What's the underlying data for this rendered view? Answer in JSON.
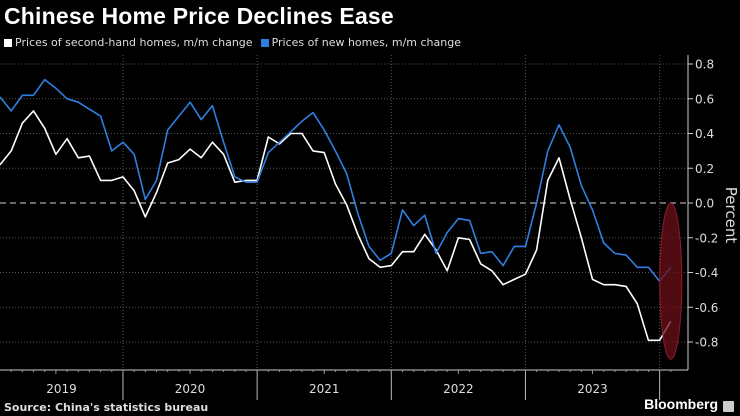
{
  "title": "Chinese Home Price Declines Ease",
  "source": "Source: China's statistics bureau",
  "brand": "Bloomberg",
  "chart_data": {
    "type": "line",
    "title": "Chinese Home Price Declines Ease",
    "ylabel": "Percent",
    "ylim": [
      -0.95,
      0.85
    ],
    "yticks": [
      0.8,
      0.6,
      0.4,
      0.2,
      0.0,
      -0.2,
      -0.4,
      -0.6,
      -0.8
    ],
    "ytick_labels": [
      "0.8",
      "0.6",
      "0.4",
      "0.2",
      "0.0",
      "-0.2",
      "-0.4",
      "-0.6",
      "-0.8"
    ],
    "xtick_labels": [
      "2019",
      "2020",
      "2021",
      "2022",
      "2023"
    ],
    "grid": true,
    "legend": "top-left",
    "highlight": "ellipse around latest month",
    "x": [
      "2019-01",
      "2019-02",
      "2019-03",
      "2019-04",
      "2019-05",
      "2019-06",
      "2019-07",
      "2019-08",
      "2019-09",
      "2019-10",
      "2019-11",
      "2019-12",
      "2020-01",
      "2020-02",
      "2020-03",
      "2020-04",
      "2020-05",
      "2020-06",
      "2020-07",
      "2020-08",
      "2020-09",
      "2020-10",
      "2020-11",
      "2020-12",
      "2021-01",
      "2021-02",
      "2021-03",
      "2021-04",
      "2021-05",
      "2021-06",
      "2021-07",
      "2021-08",
      "2021-09",
      "2021-10",
      "2021-11",
      "2021-12",
      "2022-01",
      "2022-02",
      "2022-03",
      "2022-04",
      "2022-05",
      "2022-06",
      "2022-07",
      "2022-08",
      "2022-09",
      "2022-10",
      "2022-11",
      "2022-12",
      "2023-01",
      "2023-02",
      "2023-03",
      "2023-04",
      "2023-05",
      "2023-06",
      "2023-07",
      "2023-08",
      "2023-09",
      "2023-10",
      "2023-11",
      "2023-12",
      "2024-01"
    ],
    "series": [
      {
        "name": "Prices of second-hand homes, m/m change",
        "color": "#ffffff",
        "values": [
          0.22,
          0.3,
          0.46,
          0.53,
          0.43,
          0.28,
          0.37,
          0.26,
          0.27,
          0.13,
          0.13,
          0.15,
          0.07,
          -0.08,
          0.06,
          0.23,
          0.25,
          0.31,
          0.26,
          0.35,
          0.28,
          0.12,
          0.13,
          0.13,
          0.38,
          0.34,
          0.4,
          0.4,
          0.3,
          0.29,
          0.11,
          -0.01,
          -0.18,
          -0.32,
          -0.37,
          -0.36,
          -0.28,
          -0.28,
          -0.18,
          -0.27,
          -0.39,
          -0.2,
          -0.21,
          -0.35,
          -0.39,
          -0.47,
          -0.44,
          -0.41,
          -0.27,
          0.13,
          0.26,
          0.02,
          -0.2,
          -0.44,
          -0.47,
          -0.47,
          -0.48,
          -0.58,
          -0.79,
          -0.79,
          -0.68
        ]
      },
      {
        "name": "Prices of new homes, m/m change",
        "color": "#2f7fe0",
        "values": [
          0.61,
          0.53,
          0.62,
          0.62,
          0.71,
          0.66,
          0.6,
          0.58,
          0.54,
          0.5,
          0.3,
          0.35,
          0.28,
          0.02,
          0.13,
          0.42,
          0.5,
          0.58,
          0.48,
          0.56,
          0.35,
          0.15,
          0.12,
          0.12,
          0.29,
          0.35,
          0.41,
          0.47,
          0.52,
          0.42,
          0.3,
          0.17,
          -0.06,
          -0.25,
          -0.33,
          -0.29,
          -0.04,
          -0.13,
          -0.07,
          -0.29,
          -0.17,
          -0.09,
          -0.1,
          -0.29,
          -0.28,
          -0.36,
          -0.25,
          -0.25,
          0.0,
          0.3,
          0.45,
          0.32,
          0.1,
          -0.04,
          -0.23,
          -0.29,
          -0.3,
          -0.37,
          -0.37,
          -0.45,
          -0.37
        ]
      }
    ]
  },
  "colors": {
    "background": "#000000",
    "highlight": "#6b0f1a"
  }
}
